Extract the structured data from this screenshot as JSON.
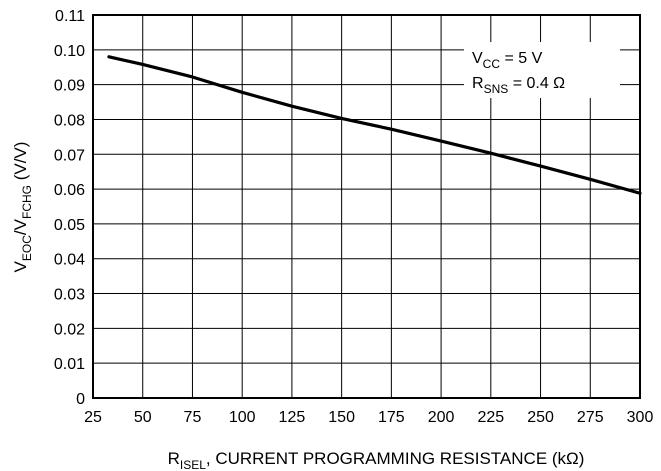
{
  "chart_data": {
    "type": "line",
    "xlabel": {
      "main": "R",
      "sub": "ISEL",
      "rest": ", CURRENT PROGRAMMING RESISTANCE (kΩ)"
    },
    "ylabel": {
      "v1": "V",
      "s1": "EOC",
      "mid": "/V",
      "s2": "FCHG",
      "rest": " (V/V)"
    },
    "xlim": [
      25,
      300
    ],
    "ylim": [
      0,
      0.11
    ],
    "xticks": [
      25,
      50,
      75,
      100,
      125,
      150,
      175,
      200,
      225,
      250,
      275,
      300
    ],
    "yticks": [
      0,
      0.01,
      0.02,
      0.03,
      0.04,
      0.05,
      0.06,
      0.07,
      0.08,
      0.09,
      0.1,
      0.11
    ],
    "ytick_labels": [
      "0",
      "0.01",
      "0.02",
      "0.03",
      "0.04",
      "0.05",
      "0.06",
      "0.07",
      "0.08",
      "0.09",
      "0.10",
      "0.11"
    ],
    "grid": true,
    "series": [
      {
        "x": [
          33,
          50,
          75,
          100,
          125,
          150,
          175,
          200,
          225,
          250,
          275,
          300
        ],
        "y": [
          0.098,
          0.0958,
          0.0922,
          0.0878,
          0.0838,
          0.0803,
          0.0772,
          0.0738,
          0.0703,
          0.0666,
          0.0628,
          0.0588
        ],
        "color": "#000000"
      }
    ],
    "annotation": {
      "line1": {
        "main": "V",
        "sub": "CC",
        "rest": " = 5 V"
      },
      "line2": {
        "main": "R",
        "sub": "SNS",
        "rest": " = 0.4 Ω"
      }
    }
  }
}
